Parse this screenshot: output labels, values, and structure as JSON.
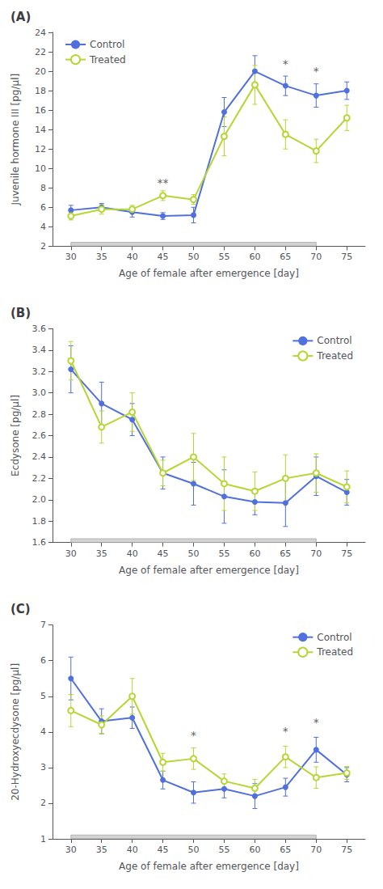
{
  "chart_data": [
    {
      "type": "line",
      "title": "(A)",
      "xlabel": "Age of female after emergence [day]",
      "ylabel": "Juvenile hormone III [pg/μl]",
      "x": [
        30,
        35,
        40,
        45,
        50,
        55,
        60,
        65,
        70,
        75
      ],
      "series": [
        {
          "name": "Control",
          "marker": "filled",
          "values": [
            5.7,
            6.0,
            5.5,
            5.1,
            5.2,
            15.8,
            20.0,
            18.5,
            17.5,
            18.0
          ],
          "errors": [
            0.5,
            0.4,
            0.5,
            0.35,
            0.8,
            1.5,
            1.6,
            1.0,
            1.2,
            0.9
          ]
        },
        {
          "name": "Treated",
          "marker": "open",
          "values": [
            5.1,
            5.8,
            5.8,
            7.2,
            6.8,
            13.3,
            18.6,
            13.5,
            11.8,
            15.2
          ],
          "errors": [
            0.4,
            0.5,
            0.4,
            0.5,
            0.5,
            2.0,
            2.0,
            1.5,
            1.2,
            1.3
          ]
        }
      ],
      "xlim": [
        27,
        78
      ],
      "xticks": [
        30,
        35,
        40,
        45,
        50,
        55,
        60,
        65,
        70,
        75
      ],
      "ylim": [
        2,
        24
      ],
      "yticks": [
        2,
        4,
        6,
        8,
        10,
        12,
        14,
        16,
        18,
        20,
        22,
        24
      ],
      "grid": false,
      "legend": "upper left",
      "annotations": [
        {
          "x": 45,
          "y": 7.9,
          "text": "**"
        },
        {
          "x": 65,
          "y": 20.2,
          "text": "*"
        },
        {
          "x": 70,
          "y": 19.4,
          "text": "*"
        }
      ],
      "shaded_span": [
        30,
        70
      ]
    },
    {
      "type": "line",
      "title": "(B)",
      "xlabel": "Age of female after emergence [day]",
      "ylabel": "Ecdysone [pg/μl]",
      "x": [
        30,
        35,
        40,
        45,
        50,
        55,
        60,
        65,
        70,
        75
      ],
      "series": [
        {
          "name": "Control",
          "marker": "filled",
          "values": [
            3.22,
            2.9,
            2.75,
            2.25,
            2.15,
            2.03,
            1.98,
            1.97,
            2.22,
            2.07
          ],
          "errors": [
            0.22,
            0.2,
            0.15,
            0.15,
            0.2,
            0.25,
            0.12,
            0.22,
            0.18,
            0.12
          ]
        },
        {
          "name": "Treated",
          "marker": "open",
          "values": [
            3.3,
            2.68,
            2.82,
            2.25,
            2.4,
            2.15,
            2.08,
            2.2,
            2.25,
            2.12
          ],
          "errors": [
            0.18,
            0.15,
            0.18,
            0.12,
            0.22,
            0.25,
            0.18,
            0.22,
            0.18,
            0.15
          ]
        }
      ],
      "xlim": [
        27,
        78
      ],
      "xticks": [
        30,
        35,
        40,
        45,
        50,
        55,
        60,
        65,
        70,
        75
      ],
      "ylim": [
        1.6,
        3.6
      ],
      "yticks": [
        1.6,
        1.8,
        {
          "value": 2,
          "label": "2.0"
        },
        2.2,
        2.4,
        2.6,
        2.8,
        {
          "value": 3,
          "label": "3.0"
        },
        3.2,
        3.4,
        3.6
      ],
      "grid": false,
      "legend": "upper right",
      "shaded_span": [
        30,
        70
      ]
    },
    {
      "type": "line",
      "title": "(C)",
      "xlabel": "Age of female after emergence [day]",
      "ylabel": "20-Hydroxyecdysone [pg/μl]",
      "x": [
        30,
        35,
        40,
        45,
        50,
        55,
        60,
        65,
        70,
        75
      ],
      "series": [
        {
          "name": "Control",
          "marker": "filled",
          "values": [
            5.5,
            4.3,
            4.4,
            2.65,
            2.3,
            2.4,
            2.2,
            2.45,
            3.5,
            2.8
          ],
          "errors": [
            0.6,
            0.35,
            0.3,
            0.25,
            0.3,
            0.25,
            0.35,
            0.25,
            0.35,
            0.2
          ]
        },
        {
          "name": "Treated",
          "marker": "open",
          "values": [
            4.6,
            4.2,
            5.0,
            3.15,
            3.25,
            2.62,
            2.42,
            3.3,
            2.72,
            2.85
          ],
          "errors": [
            0.45,
            0.25,
            0.5,
            0.25,
            0.3,
            0.2,
            0.25,
            0.3,
            0.3,
            0.18
          ]
        }
      ],
      "xlim": [
        27,
        78
      ],
      "xticks": [
        30,
        35,
        40,
        45,
        50,
        55,
        60,
        65,
        70,
        75
      ],
      "ylim": [
        1,
        7
      ],
      "yticks": [
        1,
        2,
        3,
        4,
        5,
        6,
        7
      ],
      "grid": false,
      "legend": "upper right",
      "annotations": [
        {
          "x": 50,
          "y": 3.75,
          "text": "*"
        },
        {
          "x": 65,
          "y": 3.85,
          "text": "*"
        },
        {
          "x": 70,
          "y": 4.1,
          "text": "*"
        }
      ],
      "shaded_span": [
        30,
        70
      ]
    }
  ]
}
